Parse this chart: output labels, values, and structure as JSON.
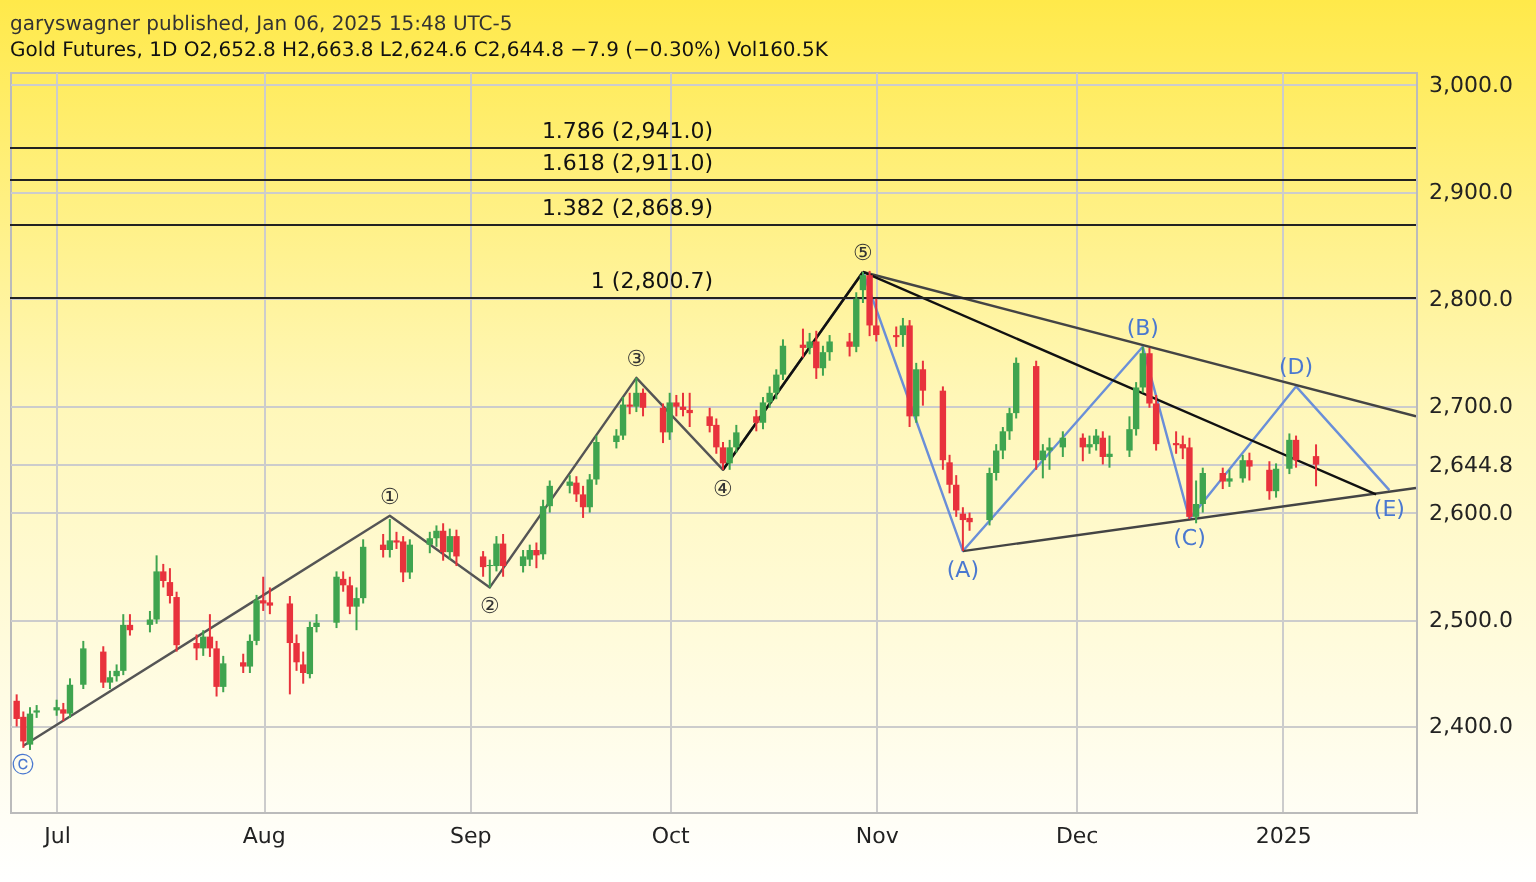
{
  "chart_data": {
    "type": "candlestick",
    "title": "garyswagner published, Jan 06, 2025 15:48 UTC-5",
    "subtitle": "Gold Futures, 1D  O2,652.8 H2,663.8 L2,624.6 C2,644.8 −7.9 (−0.30%) Vol160.5K",
    "x": [
      "2024-06-25",
      "2024-06-26",
      "2024-06-27",
      "2024-06-28",
      "2024-07-01",
      "2024-07-02",
      "2024-07-03",
      "2024-07-05",
      "2024-07-08",
      "2024-07-09",
      "2024-07-10",
      "2024-07-11",
      "2024-07-12",
      "2024-07-15",
      "2024-07-16",
      "2024-07-17",
      "2024-07-18",
      "2024-07-19",
      "2024-07-22",
      "2024-07-23",
      "2024-07-24",
      "2024-07-25",
      "2024-07-26",
      "2024-07-29",
      "2024-07-30",
      "2024-07-31",
      "2024-08-01",
      "2024-08-02",
      "2024-08-05",
      "2024-08-06",
      "2024-08-07",
      "2024-08-08",
      "2024-08-09",
      "2024-08-12",
      "2024-08-13",
      "2024-08-14",
      "2024-08-15",
      "2024-08-16",
      "2024-08-19",
      "2024-08-20",
      "2024-08-21",
      "2024-08-22",
      "2024-08-23",
      "2024-08-26",
      "2024-08-27",
      "2024-08-28",
      "2024-08-29",
      "2024-08-30",
      "2024-09-03",
      "2024-09-04",
      "2024-09-05",
      "2024-09-06",
      "2024-09-09",
      "2024-09-10",
      "2024-09-11",
      "2024-09-12",
      "2024-09-13",
      "2024-09-16",
      "2024-09-17",
      "2024-09-18",
      "2024-09-19",
      "2024-09-20",
      "2024-09-23",
      "2024-09-24",
      "2024-09-25",
      "2024-09-26",
      "2024-09-27",
      "2024-09-30",
      "2024-10-01",
      "2024-10-02",
      "2024-10-03",
      "2024-10-04",
      "2024-10-07",
      "2024-10-08",
      "2024-10-09",
      "2024-10-10",
      "2024-10-11",
      "2024-10-14",
      "2024-10-15",
      "2024-10-16",
      "2024-10-17",
      "2024-10-18",
      "2024-10-21",
      "2024-10-22",
      "2024-10-23",
      "2024-10-24",
      "2024-10-25",
      "2024-10-28",
      "2024-10-29",
      "2024-10-30",
      "2024-10-31",
      "2024-11-01",
      "2024-11-04",
      "2024-11-05",
      "2024-11-06",
      "2024-11-07",
      "2024-11-08",
      "2024-11-11",
      "2024-11-12",
      "2024-11-13",
      "2024-11-14",
      "2024-11-15",
      "2024-11-18",
      "2024-11-19",
      "2024-11-20",
      "2024-11-21",
      "2024-11-22",
      "2024-11-25",
      "2024-11-26",
      "2024-11-27",
      "2024-11-29",
      "2024-12-02",
      "2024-12-03",
      "2024-12-04",
      "2024-12-05",
      "2024-12-06",
      "2024-12-09",
      "2024-12-10",
      "2024-12-11",
      "2024-12-12",
      "2024-12-13",
      "2024-12-16",
      "2024-12-17",
      "2024-12-18",
      "2024-12-19",
      "2024-12-20",
      "2024-12-23",
      "2024-12-24",
      "2024-12-26",
      "2024-12-27",
      "2024-12-30",
      "2024-12-31",
      "2025-01-02",
      "2025-01-03",
      "2025-01-06"
    ],
    "ohlc": [
      [
        2424,
        2430,
        2400,
        2407
      ],
      [
        2409,
        2414,
        2380,
        2386
      ],
      [
        2383,
        2418,
        2378,
        2412
      ],
      [
        2413,
        2420,
        2408,
        2415
      ],
      [
        2415,
        2425,
        2410,
        2418
      ],
      [
        2416,
        2422,
        2405,
        2412
      ],
      [
        2412,
        2445,
        2408,
        2439
      ],
      [
        2439,
        2480,
        2435,
        2473
      ],
      [
        2470,
        2475,
        2436,
        2441
      ],
      [
        2441,
        2452,
        2435,
        2446
      ],
      [
        2447,
        2458,
        2442,
        2452
      ],
      [
        2452,
        2505,
        2448,
        2495
      ],
      [
        2495,
        2505,
        2485,
        2490
      ],
      [
        2495,
        2508,
        2488,
        2500
      ],
      [
        2500,
        2560,
        2496,
        2545
      ],
      [
        2545,
        2552,
        2530,
        2536
      ],
      [
        2535,
        2548,
        2515,
        2522
      ],
      [
        2521,
        2526,
        2470,
        2476
      ],
      [
        2478,
        2486,
        2462,
        2473
      ],
      [
        2473,
        2490,
        2466,
        2484
      ],
      [
        2484,
        2505,
        2465,
        2473
      ],
      [
        2473,
        2480,
        2428,
        2437
      ],
      [
        2437,
        2466,
        2432,
        2459
      ],
      [
        2460,
        2468,
        2450,
        2456
      ],
      [
        2456,
        2486,
        2450,
        2480
      ],
      [
        2480,
        2523,
        2476,
        2518
      ],
      [
        2518,
        2540,
        2508,
        2515
      ],
      [
        2516,
        2530,
        2505,
        2513
      ],
      [
        2515,
        2522,
        2430,
        2478
      ],
      [
        2478,
        2486,
        2452,
        2460
      ],
      [
        2458,
        2470,
        2440,
        2450
      ],
      [
        2449,
        2498,
        2445,
        2493
      ],
      [
        2493,
        2505,
        2488,
        2497
      ],
      [
        2497,
        2545,
        2492,
        2540
      ],
      [
        2538,
        2545,
        2526,
        2532
      ],
      [
        2532,
        2540,
        2505,
        2512
      ],
      [
        2512,
        2530,
        2490,
        2520
      ],
      [
        2520,
        2575,
        2515,
        2568
      ],
      [
        2570,
        2580,
        2558,
        2565
      ],
      [
        2565,
        2594,
        2558,
        2574
      ],
      [
        2574,
        2582,
        2566,
        2572
      ],
      [
        2573,
        2578,
        2535,
        2544
      ],
      [
        2544,
        2575,
        2538,
        2570
      ],
      [
        2570,
        2582,
        2562,
        2576
      ],
      [
        2576,
        2588,
        2568,
        2583
      ],
      [
        2583,
        2590,
        2555,
        2563
      ],
      [
        2563,
        2585,
        2556,
        2578
      ],
      [
        2578,
        2584,
        2550,
        2559
      ],
      [
        2559,
        2564,
        2540,
        2549
      ],
      [
        2550,
        2556,
        2530,
        2551
      ],
      [
        2550,
        2578,
        2545,
        2571
      ],
      [
        2571,
        2580,
        2540,
        2550
      ],
      [
        2550,
        2565,
        2544,
        2559
      ],
      [
        2556,
        2570,
        2550,
        2565
      ],
      [
        2565,
        2572,
        2548,
        2560
      ],
      [
        2561,
        2612,
        2556,
        2606
      ],
      [
        2606,
        2630,
        2600,
        2625
      ],
      [
        2625,
        2635,
        2618,
        2629
      ],
      [
        2628,
        2634,
        2610,
        2617
      ],
      [
        2617,
        2625,
        2595,
        2605
      ],
      [
        2605,
        2636,
        2600,
        2631
      ],
      [
        2631,
        2672,
        2626,
        2666
      ],
      [
        2666,
        2678,
        2660,
        2672
      ],
      [
        2672,
        2708,
        2668,
        2701
      ],
      [
        2701,
        2712,
        2692,
        2699
      ],
      [
        2699,
        2726,
        2694,
        2712
      ],
      [
        2712,
        2716,
        2690,
        2698
      ],
      [
        2698,
        2702,
        2665,
        2675
      ],
      [
        2675,
        2712,
        2668,
        2703
      ],
      [
        2703,
        2710,
        2690,
        2699
      ],
      [
        2699,
        2712,
        2690,
        2696
      ],
      [
        2696,
        2712,
        2680,
        2693
      ],
      [
        2690,
        2698,
        2675,
        2681
      ],
      [
        2682,
        2688,
        2655,
        2661
      ],
      [
        2661,
        2666,
        2640,
        2646
      ],
      [
        2646,
        2668,
        2640,
        2661
      ],
      [
        2661,
        2682,
        2656,
        2675
      ],
      [
        2690,
        2696,
        2676,
        2684
      ],
      [
        2684,
        2708,
        2678,
        2703
      ],
      [
        2703,
        2718,
        2698,
        2712
      ],
      [
        2712,
        2734,
        2706,
        2729
      ],
      [
        2729,
        2762,
        2724,
        2756
      ],
      [
        2757,
        2772,
        2745,
        2754
      ],
      [
        2754,
        2768,
        2748,
        2760
      ],
      [
        2760,
        2770,
        2725,
        2735
      ],
      [
        2735,
        2756,
        2728,
        2750
      ],
      [
        2750,
        2766,
        2742,
        2760
      ],
      [
        2760,
        2768,
        2746,
        2755
      ],
      [
        2755,
        2806,
        2750,
        2800
      ],
      [
        2808,
        2825,
        2796,
        2822
      ],
      [
        2822,
        2826,
        2765,
        2775
      ],
      [
        2775,
        2800,
        2760,
        2766
      ],
      [
        2766,
        2774,
        2755,
        2764
      ],
      [
        2766,
        2782,
        2755,
        2775
      ],
      [
        2775,
        2780,
        2680,
        2690
      ],
      [
        2690,
        2740,
        2684,
        2734
      ],
      [
        2734,
        2742,
        2700,
        2714
      ],
      [
        2714,
        2718,
        2640,
        2649
      ],
      [
        2647,
        2654,
        2618,
        2626
      ],
      [
        2626,
        2635,
        2596,
        2602
      ],
      [
        2599,
        2605,
        2564,
        2593
      ],
      [
        2595,
        2600,
        2583,
        2591
      ],
      [
        2593,
        2642,
        2588,
        2637
      ],
      [
        2637,
        2664,
        2630,
        2658
      ],
      [
        2658,
        2680,
        2650,
        2676
      ],
      [
        2676,
        2698,
        2668,
        2693
      ],
      [
        2693,
        2745,
        2688,
        2740
      ],
      [
        2737,
        2742,
        2640,
        2649
      ],
      [
        2649,
        2664,
        2632,
        2658
      ],
      [
        2658,
        2670,
        2640,
        2661
      ],
      [
        2661,
        2676,
        2652,
        2670
      ],
      [
        2670,
        2674,
        2648,
        2661
      ],
      [
        2661,
        2672,
        2655,
        2664
      ],
      [
        2664,
        2678,
        2658,
        2672
      ],
      [
        2670,
        2676,
        2645,
        2652
      ],
      [
        2652,
        2672,
        2642,
        2655
      ],
      [
        2658,
        2690,
        2652,
        2678
      ],
      [
        2678,
        2722,
        2672,
        2717
      ],
      [
        2717,
        2755,
        2712,
        2749
      ],
      [
        2749,
        2754,
        2698,
        2702
      ],
      [
        2702,
        2710,
        2658,
        2664
      ],
      [
        2665,
        2676,
        2655,
        2663
      ],
      [
        2664,
        2672,
        2650,
        2660
      ],
      [
        2661,
        2670,
        2594,
        2596
      ],
      [
        2596,
        2630,
        2590,
        2608
      ],
      [
        2608,
        2642,
        2600,
        2637
      ],
      [
        2637,
        2642,
        2622,
        2629
      ],
      [
        2629,
        2640,
        2624,
        2632
      ],
      [
        2632,
        2654,
        2628,
        2649
      ],
      [
        2649,
        2656,
        2630,
        2643
      ],
      [
        2640,
        2648,
        2612,
        2620
      ],
      [
        2620,
        2646,
        2614,
        2641
      ],
      [
        2641,
        2674,
        2636,
        2668
      ],
      [
        2668,
        2672,
        2642,
        2649
      ],
      [
        2652.8,
        2663.8,
        2624.6,
        2644.8
      ]
    ],
    "series": [
      {
        "type": "line",
        "color": "#555555",
        "x": [
          "2024-06-26",
          "2024-08-20",
          "2024-09-04",
          "2024-09-26",
          "2024-10-09",
          "2024-10-30"
        ],
        "values": [
          2382,
          2597,
          2530,
          2726,
          2640,
          2825
        ]
      },
      {
        "type": "line",
        "color": "#111111",
        "x": [
          "2024-10-09",
          "2024-10-30"
        ],
        "values": [
          2640,
          2825
        ]
      },
      {
        "type": "line",
        "color": "#6a8fd8",
        "x": [
          "2024-10-30",
          "2024-11-14",
          "2024-12-11",
          "2024-12-18",
          "2025-01-03",
          "2025-01-17"
        ],
        "values": [
          2825,
          2564,
          2755,
          2594,
          2718,
          2621
        ]
      },
      {
        "type": "line",
        "color": "#444444",
        "x": [
          "2024-10-30",
          "2025-01-21"
        ],
        "values": [
          2825,
          2690
        ]
      },
      {
        "type": "line",
        "color": "#444444",
        "x": [
          "2024-11-14",
          "2025-01-21"
        ],
        "values": [
          2564,
          2623
        ]
      },
      {
        "type": "line",
        "color": "#111111",
        "x": [
          "2024-10-30",
          "2025-01-15"
        ],
        "values": [
          2825,
          2617
        ]
      }
    ],
    "xlim": [
      "2024-06-24",
      "2025-01-21"
    ],
    "xticks": [
      {
        "value": "2024-07-01",
        "label": "Jul"
      },
      {
        "value": "2024-08-01",
        "label": "Aug"
      },
      {
        "value": "2024-09-01",
        "label": "Sep"
      },
      {
        "value": "2024-10-01",
        "label": "Oct"
      },
      {
        "value": "2024-11-01",
        "label": "Nov"
      },
      {
        "value": "2024-12-01",
        "label": "Dec"
      },
      {
        "value": "2025-01-01",
        "label": "2025"
      }
    ],
    "ylim": [
      2320,
      3012
    ],
    "yticks": [
      {
        "value": 2400,
        "label": "2,400.0"
      },
      {
        "value": 2500,
        "label": "2,500.0"
      },
      {
        "value": 2600,
        "label": "2,600.0"
      },
      {
        "value": 2644.8,
        "label": "2,644.8"
      },
      {
        "value": 2700,
        "label": "2,700.0"
      },
      {
        "value": 2800,
        "label": "2,800.0"
      },
      {
        "value": 2900,
        "label": "2,900.0"
      },
      {
        "value": 3000,
        "label": "3,000.0"
      }
    ],
    "grid": true,
    "ref_lines": [
      {
        "axis": "y",
        "value": 2941,
        "label": "1.786 (2,941.0)",
        "color": "#222222"
      },
      {
        "axis": "y",
        "value": 2911,
        "label": "1.618 (2,911.0)",
        "color": "#222222"
      },
      {
        "axis": "y",
        "value": 2868.9,
        "label": "1.382 (2,868.9)",
        "color": "#222222"
      },
      {
        "axis": "y",
        "value": 2800.7,
        "label": "1 (2,800.7)",
        "color": "#222222"
      }
    ],
    "annotations": [
      {
        "text": "ⓒ",
        "x": "2024-06-26",
        "y": 2382
      },
      {
        "text": "①",
        "x": "2024-08-20",
        "y": 2597
      },
      {
        "text": "②",
        "x": "2024-09-04",
        "y": 2530
      },
      {
        "text": "③",
        "x": "2024-09-26",
        "y": 2726
      },
      {
        "text": "④",
        "x": "2024-10-09",
        "y": 2640
      },
      {
        "text": "⑤",
        "x": "2024-10-30",
        "y": 2825
      },
      {
        "text": "(A)",
        "x": "2024-11-14",
        "y": 2564
      },
      {
        "text": "(B)",
        "x": "2024-12-11",
        "y": 2755
      },
      {
        "text": "(C)",
        "x": "2024-12-18",
        "y": 2594
      },
      {
        "text": "(D)",
        "x": "2025-01-03",
        "y": 2718
      },
      {
        "text": "(E)",
        "x": "2025-01-17",
        "y": 2621
      }
    ]
  }
}
